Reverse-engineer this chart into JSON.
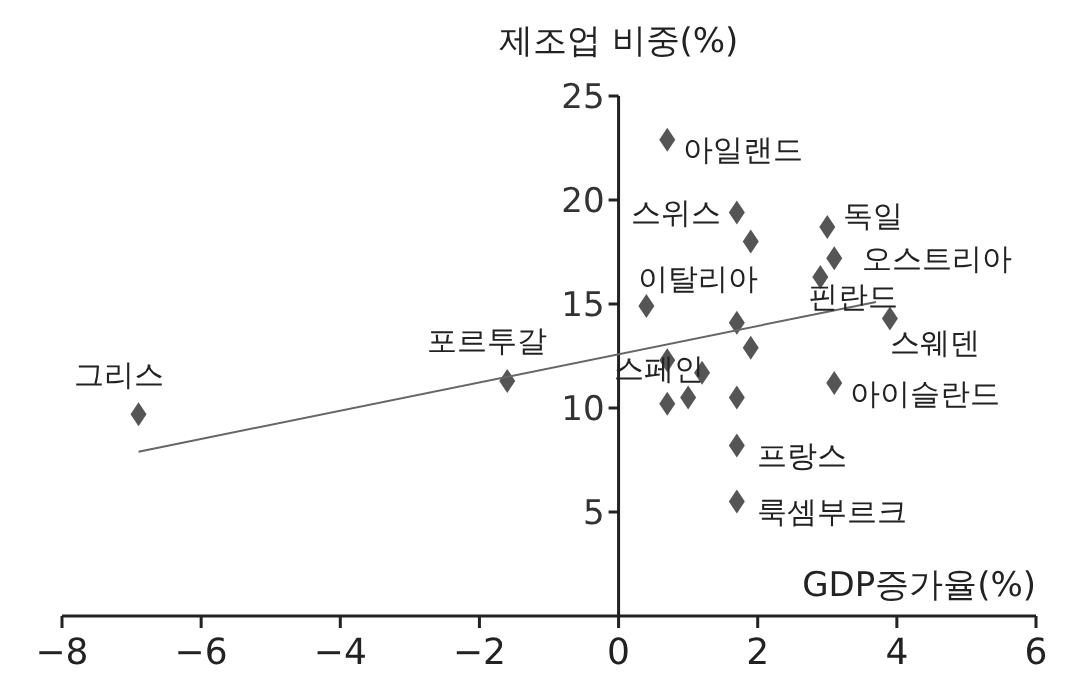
{
  "chart_data": {
    "type": "scatter",
    "xlabel": "GDP증가율(%)",
    "ylabel": "제조업 비중(%)",
    "grid": false,
    "xlim": [
      -8,
      6
    ],
    "xticks": [
      {
        "value": -8,
        "label": "−8"
      },
      {
        "value": -6,
        "label": "−6"
      },
      {
        "value": -4,
        "label": "−4"
      },
      {
        "value": -2,
        "label": "−2"
      },
      0,
      2,
      4,
      6
    ],
    "ylim": [
      0,
      25
    ],
    "yticks": [
      5,
      10,
      15,
      20,
      25
    ],
    "series": [
      {
        "marker": "diamond",
        "color": "#555555",
        "x": [
          0.7,
          1.7,
          1.9,
          3.0,
          3.1,
          2.9,
          0.4,
          1.7,
          3.9,
          1.9,
          0.7,
          1.2,
          3.1,
          0.7,
          1.0,
          1.7,
          1.7,
          1.7,
          -6.9,
          -1.6
        ],
        "values": [
          22.9,
          19.4,
          18.0,
          18.7,
          17.2,
          16.3,
          14.9,
          14.1,
          14.3,
          12.9,
          12.3,
          11.7,
          11.2,
          10.2,
          10.5,
          10.5,
          8.2,
          5.5,
          9.7,
          11.3
        ]
      },
      {
        "type": "line",
        "color": "#666666",
        "x": [
          -6.9,
          3.7
        ],
        "values": [
          7.9,
          15.1
        ]
      }
    ],
    "annotations": [
      {
        "text": "아일랜드",
        "x": 0.7,
        "y": 22.9
      },
      {
        "text": "스위스",
        "x": 1.7,
        "y": 19.4
      },
      {
        "text": "독일",
        "x": 3.0,
        "y": 18.7
      },
      {
        "text": "오스트리아",
        "x": 3.1,
        "y": 17.2
      },
      {
        "text": "핀란드",
        "x": 2.9,
        "y": 16.3
      },
      {
        "text": "이탈리아",
        "x": 0.4,
        "y": 14.9
      },
      {
        "text": "스웨덴",
        "x": 3.9,
        "y": 14.3
      },
      {
        "text": "스페인",
        "x": 1.2,
        "y": 11.7
      },
      {
        "text": "아이슬란드",
        "x": 3.1,
        "y": 11.2
      },
      {
        "text": "프랑스",
        "x": 1.7,
        "y": 8.2
      },
      {
        "text": "룩셈부르크",
        "x": 1.7,
        "y": 5.5
      },
      {
        "text": "그리스",
        "x": -6.9,
        "y": 9.7
      },
      {
        "text": "포르투갈",
        "x": -1.6,
        "y": 11.3
      }
    ]
  }
}
